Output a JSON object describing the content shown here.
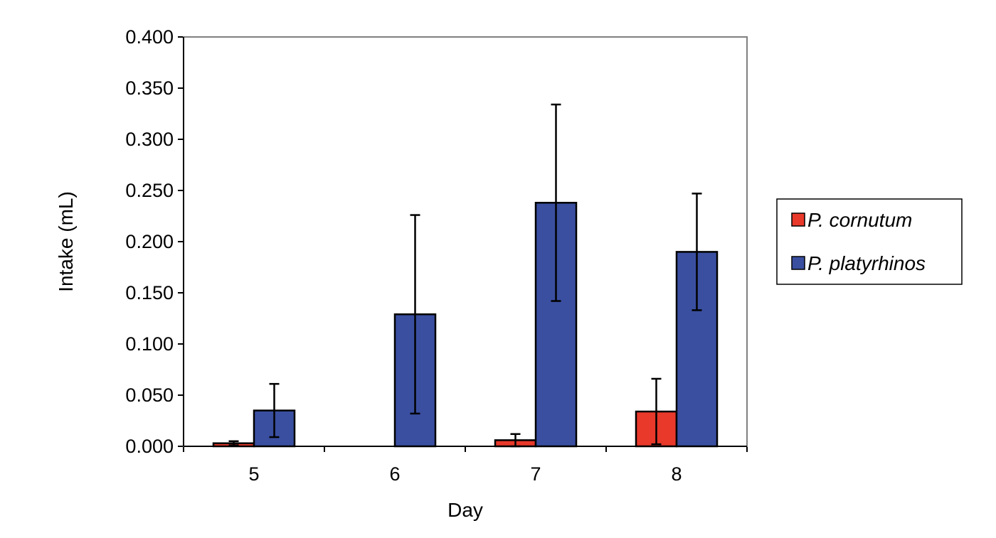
{
  "chart_data": {
    "type": "bar",
    "title": "",
    "xlabel": "Day",
    "ylabel": "Intake (mL)",
    "categories": [
      "5",
      "6",
      "7",
      "8"
    ],
    "ylim": [
      0,
      0.4
    ],
    "yticks": [
      "0.000",
      "0.050",
      "0.100",
      "0.150",
      "0.200",
      "0.250",
      "0.300",
      "0.350",
      "0.400"
    ],
    "grid": false,
    "legend_position": "right",
    "series": [
      {
        "name": "P. cornutum",
        "color": "#e8392b",
        "values": [
          0.003,
          0.0,
          0.006,
          0.034
        ],
        "error": [
          0.002,
          0.0,
          0.006,
          0.032
        ]
      },
      {
        "name": "P. platyrhinos",
        "color": "#3a4fa0",
        "values": [
          0.035,
          0.129,
          0.238,
          0.19
        ],
        "error": [
          0.026,
          0.097,
          0.096,
          0.057
        ]
      }
    ]
  }
}
